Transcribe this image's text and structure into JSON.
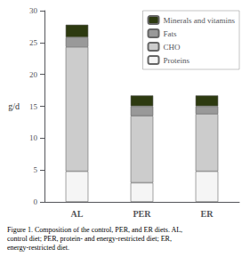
{
  "chart_data": {
    "type": "bar",
    "stacked": true,
    "ylabel": "g/d",
    "caption": "Figure 1. Composition of the control, PER, and ER diets. AL,\ncontrol diet; PER, protein- and energy-restricted diet; ER,\nenergy-restricted diet.",
    "categories": [
      "AL",
      "PER",
      "ER"
    ],
    "series": [
      {
        "name": "Proteins",
        "color": "#f5f5f5",
        "values": [
          4.8,
          3.0,
          4.8
        ]
      },
      {
        "name": "CHO",
        "color": "#cccccc",
        "values": [
          19.5,
          10.5,
          9.0
        ]
      },
      {
        "name": "Fats",
        "color": "#999999",
        "values": [
          1.5,
          1.5,
          1.2
        ]
      },
      {
        "name": "Minerals and vitamins",
        "color": "#2d3a10",
        "values": [
          2.0,
          1.7,
          1.7
        ]
      }
    ],
    "ylim": [
      0,
      30
    ],
    "yticks": [
      0,
      5,
      10,
      15,
      20,
      25,
      30
    ],
    "grid": false,
    "legend": "upper right"
  }
}
